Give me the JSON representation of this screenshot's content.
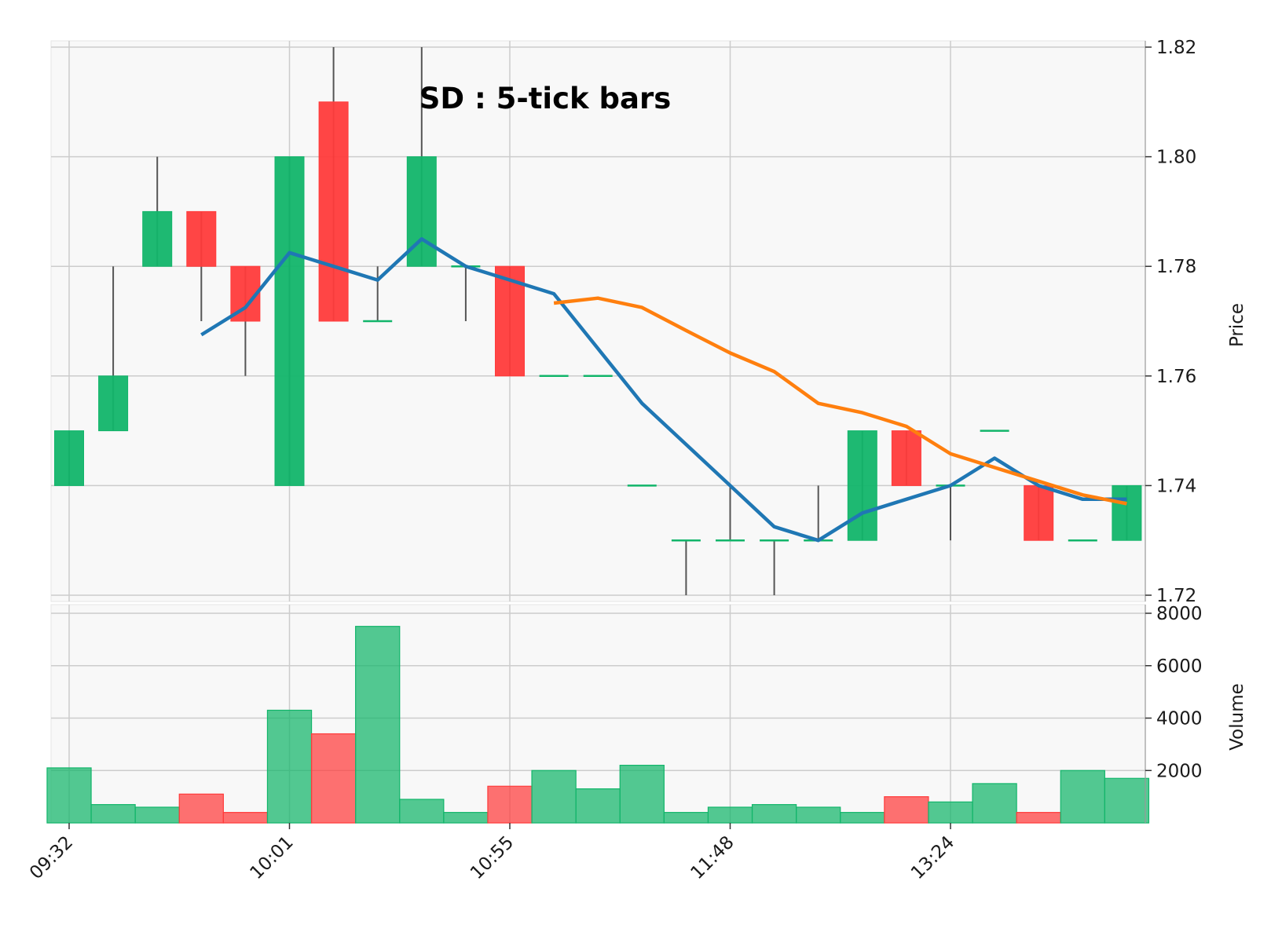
{
  "chart_data": {
    "type": "candlestick",
    "title": "SD : 5-tick bars",
    "colors": {
      "up": "#12b56a",
      "down": "#ff3b3b",
      "wick": "#555555",
      "ma_short": "#1f77b4",
      "ma_long": "#ff7f0e",
      "grid": "#cccccc",
      "panel_bg": "#f8f8f8"
    },
    "price_panel": {
      "ylabel": "Price",
      "ylim": [
        1.72,
        1.82
      ],
      "yticks": [
        "1.72",
        "1.74",
        "1.76",
        "1.78",
        "1.80",
        "1.82"
      ],
      "grid": true
    },
    "volume_panel": {
      "ylabel": "Volume",
      "ylim": [
        0,
        8000
      ],
      "yticks": [
        "2000",
        "4000",
        "6000",
        "8000"
      ],
      "grid": true
    },
    "x_tick_labels": [
      {
        "index": 0,
        "label": "09:32"
      },
      {
        "index": 5,
        "label": "10:01"
      },
      {
        "index": 10,
        "label": "10:55"
      },
      {
        "index": 15,
        "label": "11:48"
      },
      {
        "index": 20,
        "label": "13:24"
      }
    ],
    "candles": [
      {
        "open": 1.74,
        "high": 1.75,
        "low": 1.74,
        "close": 1.75,
        "volume": 2100
      },
      {
        "open": 1.75,
        "high": 1.78,
        "low": 1.75,
        "close": 1.76,
        "volume": 700
      },
      {
        "open": 1.78,
        "high": 1.8,
        "low": 1.78,
        "close": 1.79,
        "volume": 600
      },
      {
        "open": 1.79,
        "high": 1.79,
        "low": 1.77,
        "close": 1.78,
        "volume": 1100
      },
      {
        "open": 1.78,
        "high": 1.78,
        "low": 1.76,
        "close": 1.77,
        "volume": 400
      },
      {
        "open": 1.74,
        "high": 1.8,
        "low": 1.74,
        "close": 1.8,
        "volume": 4300
      },
      {
        "open": 1.81,
        "high": 1.82,
        "low": 1.77,
        "close": 1.77,
        "volume": 3400
      },
      {
        "open": 1.77,
        "high": 1.78,
        "low": 1.77,
        "close": 1.77,
        "volume": 7500
      },
      {
        "open": 1.78,
        "high": 1.82,
        "low": 1.78,
        "close": 1.8,
        "volume": 900
      },
      {
        "open": 1.78,
        "high": 1.78,
        "low": 1.77,
        "close": 1.78,
        "volume": 400
      },
      {
        "open": 1.78,
        "high": 1.78,
        "low": 1.76,
        "close": 1.76,
        "volume": 1400
      },
      {
        "open": 1.76,
        "high": 1.76,
        "low": 1.76,
        "close": 1.76,
        "volume": 2000
      },
      {
        "open": 1.76,
        "high": 1.76,
        "low": 1.76,
        "close": 1.76,
        "volume": 1300
      },
      {
        "open": 1.74,
        "high": 1.74,
        "low": 1.74,
        "close": 1.74,
        "volume": 2200
      },
      {
        "open": 1.73,
        "high": 1.73,
        "low": 1.72,
        "close": 1.73,
        "volume": 400
      },
      {
        "open": 1.73,
        "high": 1.74,
        "low": 1.73,
        "close": 1.73,
        "volume": 600
      },
      {
        "open": 1.73,
        "high": 1.73,
        "low": 1.72,
        "close": 1.73,
        "volume": 700
      },
      {
        "open": 1.73,
        "high": 1.74,
        "low": 1.73,
        "close": 1.73,
        "volume": 600
      },
      {
        "open": 1.73,
        "high": 1.75,
        "low": 1.73,
        "close": 1.75,
        "volume": 400
      },
      {
        "open": 1.75,
        "high": 1.75,
        "low": 1.74,
        "close": 1.74,
        "volume": 1000
      },
      {
        "open": 1.74,
        "high": 1.74,
        "low": 1.73,
        "close": 1.74,
        "volume": 800
      },
      {
        "open": 1.75,
        "high": 1.75,
        "low": 1.75,
        "close": 1.75,
        "volume": 1500
      },
      {
        "open": 1.74,
        "high": 1.74,
        "low": 1.73,
        "close": 1.73,
        "volume": 400
      },
      {
        "open": 1.73,
        "high": 1.73,
        "low": 1.73,
        "close": 1.73,
        "volume": 2000
      },
      {
        "open": 1.73,
        "high": 1.74,
        "low": 1.73,
        "close": 1.74,
        "volume": 1700
      }
    ],
    "moving_averages": [
      {
        "key": "ma_short",
        "start_index": 3,
        "values": [
          1.7675,
          1.7725,
          1.7825,
          1.78,
          1.7775,
          1.785,
          1.78,
          1.7775,
          1.775,
          1.765,
          1.755,
          1.7475,
          1.74,
          1.7325,
          1.73,
          1.735,
          1.7375,
          1.74,
          1.745,
          1.74,
          1.7375,
          1.7375
        ]
      },
      {
        "key": "ma_long",
        "start_index": 11,
        "values": [
          1.7733,
          1.7742,
          1.7725,
          1.7683,
          1.7642,
          1.7608,
          1.755,
          1.7533,
          1.7508,
          1.7458,
          1.7433,
          1.7408,
          1.7383,
          1.7367
        ]
      }
    ]
  }
}
